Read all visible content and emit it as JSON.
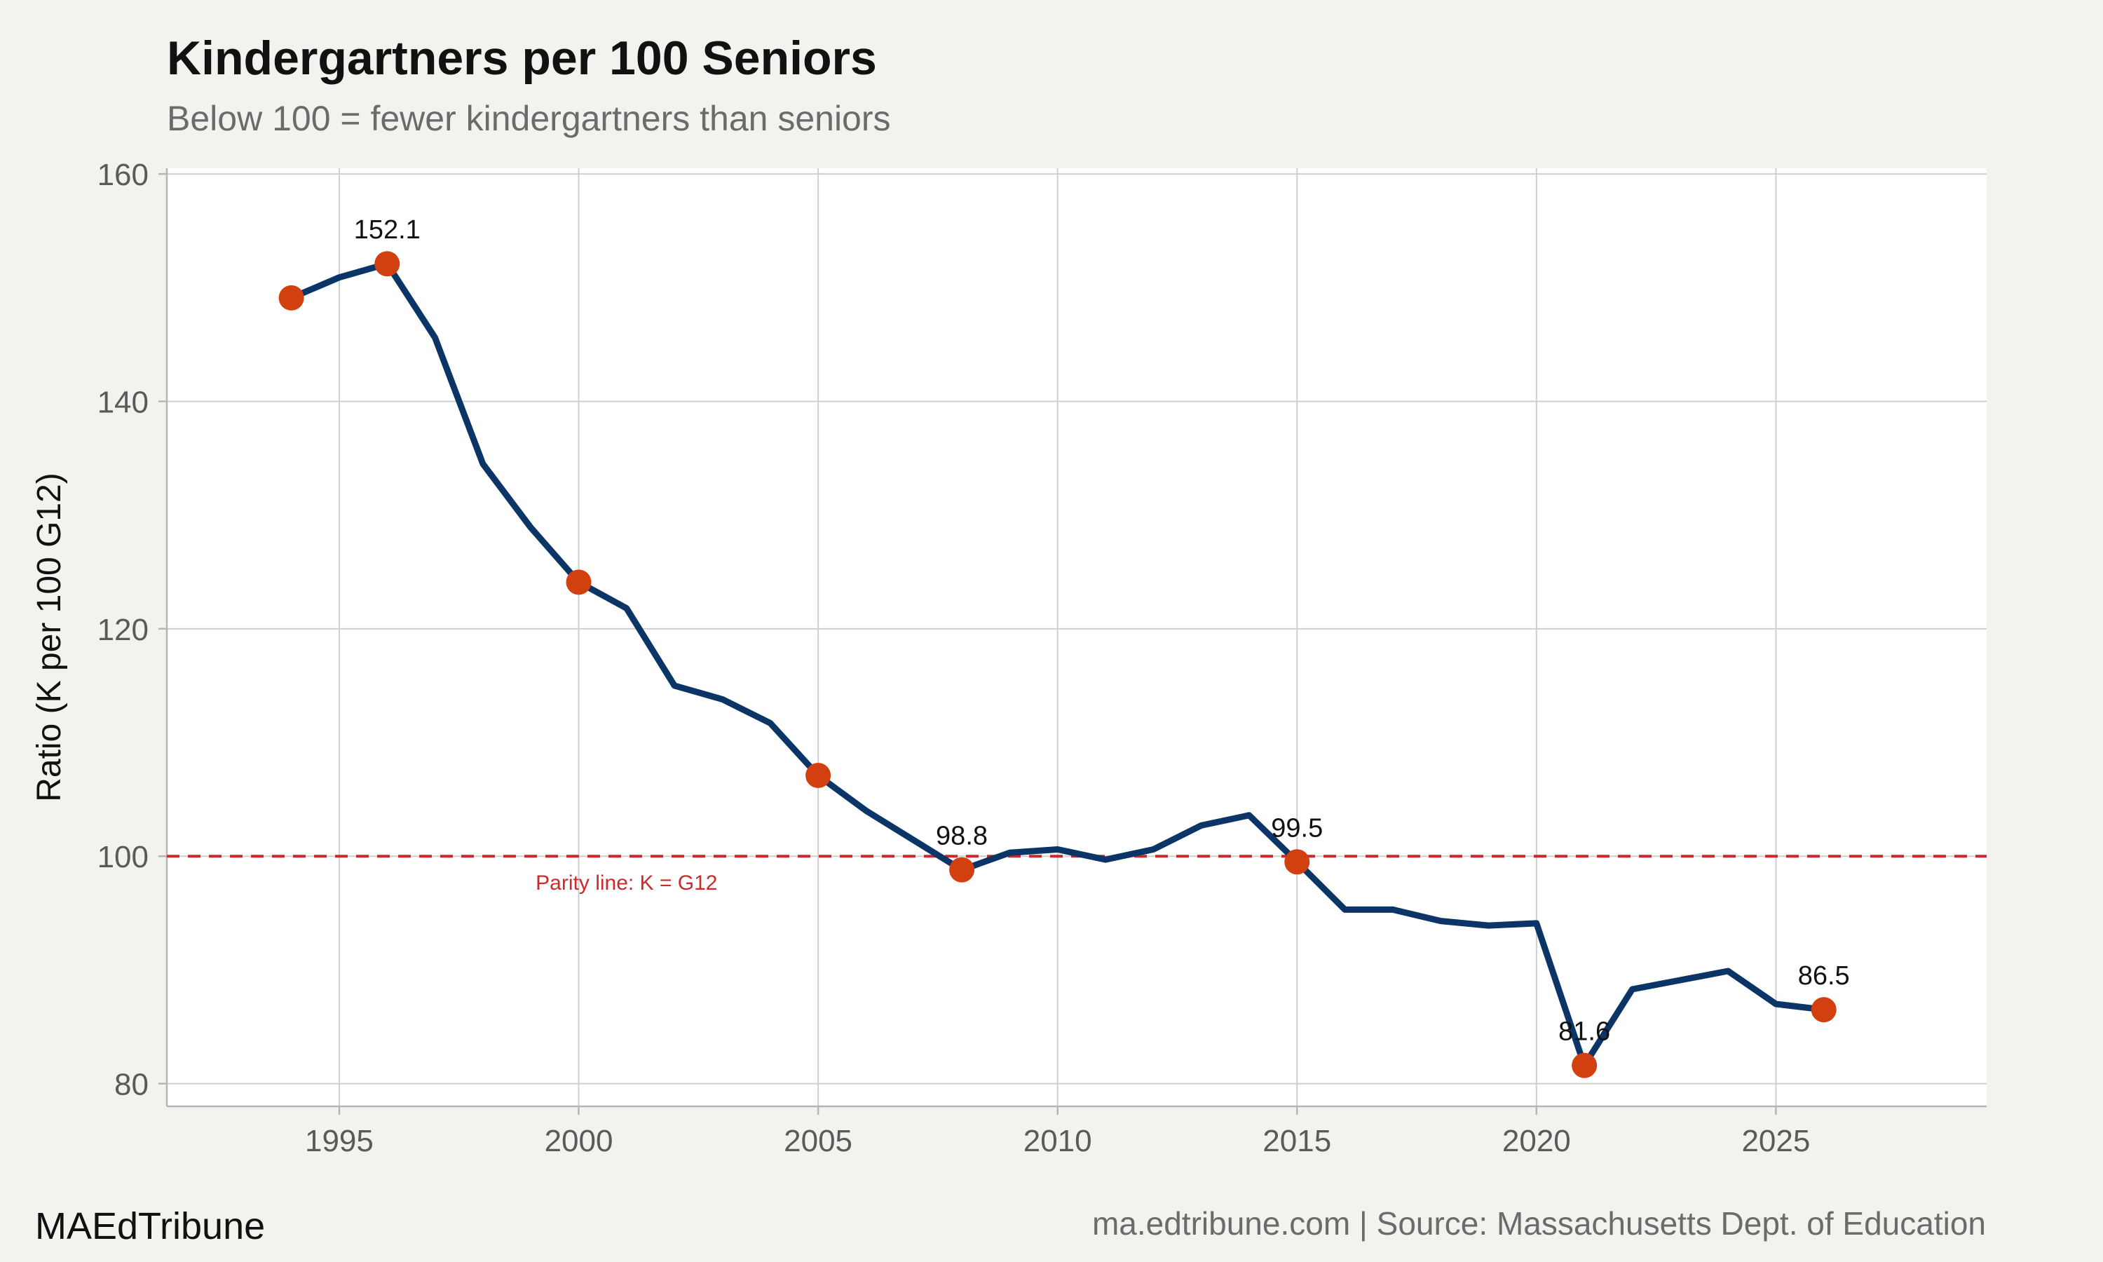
{
  "brand": "MAEdTribune",
  "source": "ma.edtribune.com | Source: Massachusetts Dept. of Education",
  "colors": {
    "background": "#f4f2ee",
    "plot_background": "#ffffff",
    "line": "#0a3566",
    "marker": "#d2400f",
    "parity_line": "#cc2a2a",
    "grid": "#cfcfcf"
  },
  "chart_data": {
    "type": "line",
    "title": "Kindergartners per 100 Seniors",
    "subtitle": "Below 100 = fewer kindergartners than seniors",
    "xlabel": "",
    "ylabel": "Ratio (K per 100 G12)",
    "xlim": [
      1991.4,
      2029.4
    ],
    "ylim": [
      78,
      160.5
    ],
    "xticks": [
      1995,
      2000,
      2005,
      2010,
      2015,
      2020,
      2025
    ],
    "yticks": [
      80,
      100,
      120,
      140,
      160
    ],
    "grid": true,
    "series": [
      {
        "x": [
          1994,
          1995,
          1996,
          1997,
          1998,
          1999,
          2000,
          2001,
          2002,
          2003,
          2004,
          2005,
          2006,
          2007,
          2008,
          2009,
          2010,
          2011,
          2012,
          2013,
          2014,
          2015,
          2016,
          2017,
          2018,
          2019,
          2020,
          2021,
          2022,
          2023,
          2024,
          2025,
          2026
        ],
        "y": [
          149.1,
          150.9,
          152.1,
          145.6,
          134.5,
          128.9,
          124.1,
          121.8,
          115.0,
          113.8,
          111.7,
          107.1,
          104.0,
          101.4,
          98.8,
          100.3,
          100.6,
          99.7,
          100.6,
          102.7,
          103.6,
          99.5,
          95.3,
          95.3,
          94.3,
          93.9,
          94.1,
          81.6,
          88.3,
          89.1,
          89.9,
          87.0,
          86.5
        ]
      }
    ],
    "highlights": [
      {
        "x": 1994,
        "y": 149.1,
        "label": ""
      },
      {
        "x": 1996,
        "y": 152.1,
        "label": "152.1"
      },
      {
        "x": 2000,
        "y": 124.1,
        "label": ""
      },
      {
        "x": 2005,
        "y": 107.1,
        "label": ""
      },
      {
        "x": 2008,
        "y": 98.8,
        "label": "98.8"
      },
      {
        "x": 2015,
        "y": 99.5,
        "label": "99.5"
      },
      {
        "x": 2021,
        "y": 81.6,
        "label": "81.6"
      },
      {
        "x": 2026,
        "y": 86.5,
        "label": "86.5"
      }
    ],
    "reference_line": {
      "y": 100,
      "style": "dashed",
      "label": "Parity line: K = G12",
      "label_x": 2001
    }
  }
}
